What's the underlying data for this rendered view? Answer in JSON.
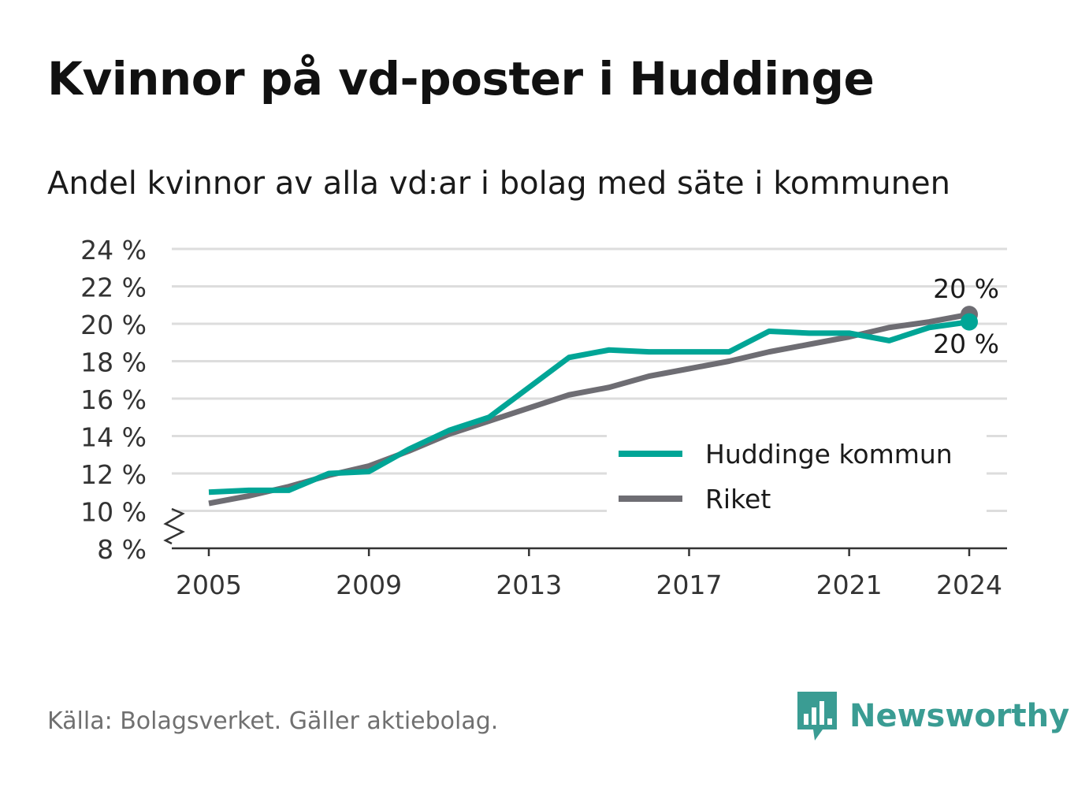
{
  "title": "Kvinnor på vd-poster i Huddinge",
  "subtitle": "Andel kvinnor av alla vd:ar i bolag med säte i kommunen",
  "source": "Källa: Bolagsverket. Gäller aktiebolag.",
  "brand": "Newsworthy",
  "colors": {
    "huddinge": "#00a596",
    "riket": "#6e6d73",
    "grid": "#dddddd",
    "brand": "#3a9c93"
  },
  "chart_data": {
    "type": "line",
    "x": [
      2005,
      2006,
      2007,
      2008,
      2009,
      2010,
      2011,
      2012,
      2013,
      2014,
      2015,
      2016,
      2017,
      2018,
      2019,
      2020,
      2021,
      2022,
      2023,
      2024
    ],
    "series": [
      {
        "name": "Huddinge kommun",
        "color": "#00a596",
        "values": [
          11.0,
          11.1,
          11.1,
          12.0,
          12.1,
          13.3,
          14.3,
          15.0,
          16.6,
          18.2,
          18.6,
          18.5,
          18.5,
          18.5,
          19.6,
          19.5,
          19.5,
          19.1,
          19.8,
          20.1
        ],
        "end_label": "20 %"
      },
      {
        "name": "Riket",
        "color": "#6e6d73",
        "values": [
          10.4,
          10.8,
          11.3,
          11.9,
          12.4,
          13.2,
          14.1,
          14.8,
          15.5,
          16.2,
          16.6,
          17.2,
          17.6,
          18.0,
          18.5,
          18.9,
          19.3,
          19.8,
          20.1,
          20.5
        ],
        "end_label": "20 %"
      }
    ],
    "y_ticks": [
      "8 %",
      "10 %",
      "12 %",
      "14 %",
      "16 %",
      "18 %",
      "20 %",
      "22 %",
      "24 %"
    ],
    "x_ticks": [
      "2005",
      "2009",
      "2013",
      "2017",
      "2021",
      "2024"
    ],
    "ylim": [
      8,
      24
    ],
    "y_axis_break": true,
    "grid": true,
    "legend_position": "bottom-right"
  }
}
